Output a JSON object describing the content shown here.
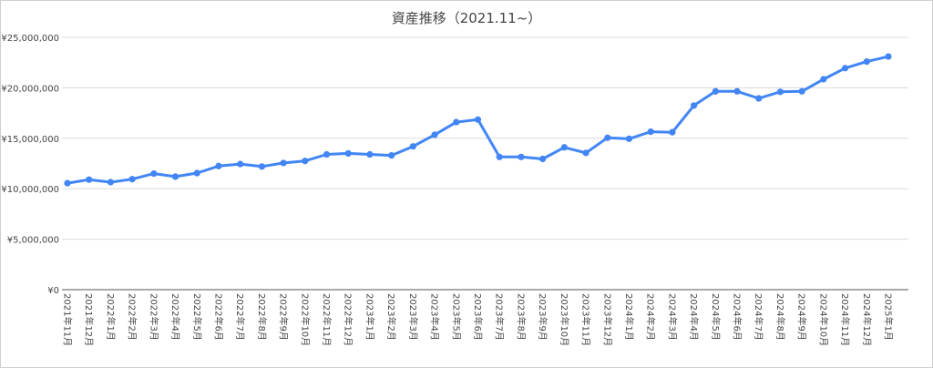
{
  "chart_data": {
    "type": "line",
    "title": "資産推移（2021.11~）",
    "xlabel": "",
    "ylabel": "",
    "ylim": [
      0,
      25000000
    ],
    "yticks": [
      "¥0",
      "¥5,000,000",
      "¥10,000,000",
      "¥15,000,000",
      "¥20,000,000",
      "¥25,000,000"
    ],
    "grid": true,
    "legend": "none",
    "line_color": "#4285f4",
    "categories": [
      "2021年11月",
      "2021年12月",
      "2022年1月",
      "2022年2月",
      "2022年3月",
      "2022年4月",
      "2022年5月",
      "2022年6月",
      "2022年7月",
      "2022年8月",
      "2022年9月",
      "2022年10月",
      "2022年11月",
      "2022年12月",
      "2023年1月",
      "2023年2月",
      "2023年3月",
      "2023年4月",
      "2023年5月",
      "2023年6月",
      "2023年7月",
      "2023年8月",
      "2023年9月",
      "2023年10月",
      "2023年11月",
      "2023年12月",
      "2024年1月",
      "2024年2月",
      "2024年3月",
      "2024年4月",
      "2024年5月",
      "2024年6月",
      "2024年7月",
      "2024年8月",
      "2024年9月",
      "2024年10月",
      "2024年11月",
      "2024年12月",
      "2025年1月"
    ],
    "values": [
      10550000,
      10900000,
      10650000,
      10950000,
      11500000,
      11200000,
      11550000,
      12250000,
      12450000,
      12200000,
      12550000,
      12750000,
      13400000,
      13500000,
      13400000,
      13300000,
      14200000,
      15350000,
      16600000,
      16850000,
      13150000,
      13150000,
      12950000,
      14100000,
      13550000,
      15050000,
      14950000,
      15650000,
      15600000,
      18250000,
      19650000,
      19650000,
      18950000,
      19600000,
      19650000,
      20850000,
      21950000,
      22600000,
      23100000
    ]
  }
}
